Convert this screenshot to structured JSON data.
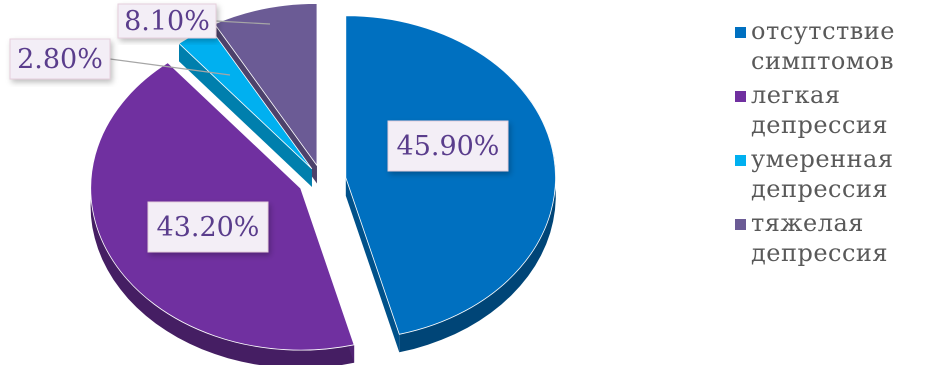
{
  "chart_data": {
    "type": "pie",
    "categories": [
      "отсутствие симптомов",
      "легкая депрессия",
      "умеренная депрессия",
      "тяжелая депрессия"
    ],
    "values": [
      45.9,
      43.2,
      2.8,
      8.1
    ],
    "data_labels": [
      "45.90%",
      "43.20%",
      "2.80%",
      "8.10%"
    ],
    "colors": [
      "#0070c0",
      "#7030a0",
      "#00b0f0",
      "#6b5b95"
    ],
    "legend_placement": "right",
    "exploded": true,
    "three_d": true
  },
  "legend": {
    "items": [
      {
        "line1": "отсутствие",
        "line2": "симптомов"
      },
      {
        "line1": "легкая",
        "line2": "депрессия"
      },
      {
        "line1": "умеренная",
        "line2": "депрессия"
      },
      {
        "line1": "тяжелая",
        "line2": "депрессия"
      }
    ]
  }
}
